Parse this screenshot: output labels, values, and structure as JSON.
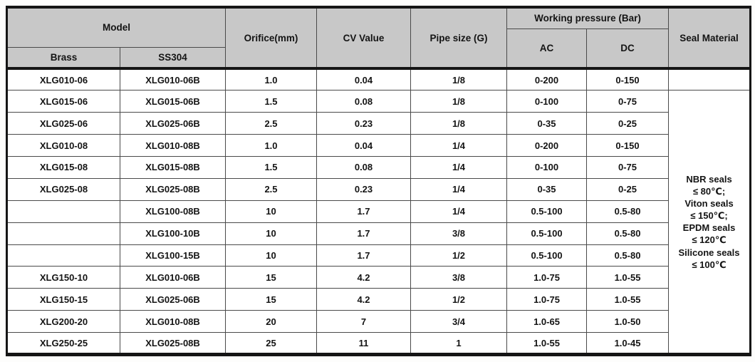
{
  "colors": {
    "header_bg": "#c8c8c8",
    "outer_border": "#151515",
    "grid_line": "#4a4a4a",
    "text": "#141414",
    "page_bg": "#ffffff"
  },
  "table": {
    "header": {
      "model": "Model",
      "brass": "Brass",
      "ss304": "SS304",
      "orifice": "Orifice(mm)",
      "cv": "CV Value",
      "pipe": "Pipe size (G)",
      "working_pressure": "Working pressure (Bar)",
      "ac": "AC",
      "dc": "DC",
      "seal": "Seal Material"
    },
    "rows": [
      {
        "brass": "XLG010-06",
        "ss304": "XLG010-06B",
        "orifice": "1.0",
        "cv": "0.04",
        "pipe": "1/8",
        "ac": "0-200",
        "dc": "0-150"
      },
      {
        "brass": "XLG015-06",
        "ss304": "XLG015-06B",
        "orifice": "1.5",
        "cv": "0.08",
        "pipe": "1/8",
        "ac": "0-100",
        "dc": "0-75"
      },
      {
        "brass": "XLG025-06",
        "ss304": "XLG025-06B",
        "orifice": "2.5",
        "cv": "0.23",
        "pipe": "1/8",
        "ac": "0-35",
        "dc": "0-25"
      },
      {
        "brass": "XLG010-08",
        "ss304": "XLG010-08B",
        "orifice": "1.0",
        "cv": "0.04",
        "pipe": "1/4",
        "ac": "0-200",
        "dc": "0-150"
      },
      {
        "brass": "XLG015-08",
        "ss304": "XLG015-08B",
        "orifice": "1.5",
        "cv": "0.08",
        "pipe": "1/4",
        "ac": "0-100",
        "dc": "0-75"
      },
      {
        "brass": "XLG025-08",
        "ss304": "XLG025-08B",
        "orifice": "2.5",
        "cv": "0.23",
        "pipe": "1/4",
        "ac": "0-35",
        "dc": "0-25"
      },
      {
        "brass": "",
        "ss304": "XLG100-08B",
        "orifice": "10",
        "cv": "1.7",
        "pipe": "1/4",
        "ac": "0.5-100",
        "dc": "0.5-80"
      },
      {
        "brass": "",
        "ss304": "XLG100-10B",
        "orifice": "10",
        "cv": "1.7",
        "pipe": "3/8",
        "ac": "0.5-100",
        "dc": "0.5-80"
      },
      {
        "brass": "",
        "ss304": "XLG100-15B",
        "orifice": "10",
        "cv": "1.7",
        "pipe": "1/2",
        "ac": "0.5-100",
        "dc": "0.5-80"
      },
      {
        "brass": "XLG150-10",
        "ss304": "XLG010-06B",
        "orifice": "15",
        "cv": "4.2",
        "pipe": "3/8",
        "ac": "1.0-75",
        "dc": "1.0-55"
      },
      {
        "brass": "XLG150-15",
        "ss304": "XLG025-06B",
        "orifice": "15",
        "cv": "4.2",
        "pipe": "1/2",
        "ac": "1.0-75",
        "dc": "1.0-55"
      },
      {
        "brass": "XLG200-20",
        "ss304": "XLG010-08B",
        "orifice": "20",
        "cv": "7",
        "pipe": "3/4",
        "ac": "1.0-65",
        "dc": "1.0-50"
      },
      {
        "brass": "XLG250-25",
        "ss304": "XLG025-08B",
        "orifice": "25",
        "cv": "11",
        "pipe": "1",
        "ac": "1.0-55",
        "dc": "1.0-45"
      }
    ],
    "seal_note_lines": [
      "NBR seals",
      "≤ 80℃;",
      "Viton seals",
      "≤ 150℃;",
      "EPDM seals",
      "≤ 120℃",
      "Silicone seals",
      "≤ 100℃"
    ],
    "seal_note_span_rows": 12
  }
}
